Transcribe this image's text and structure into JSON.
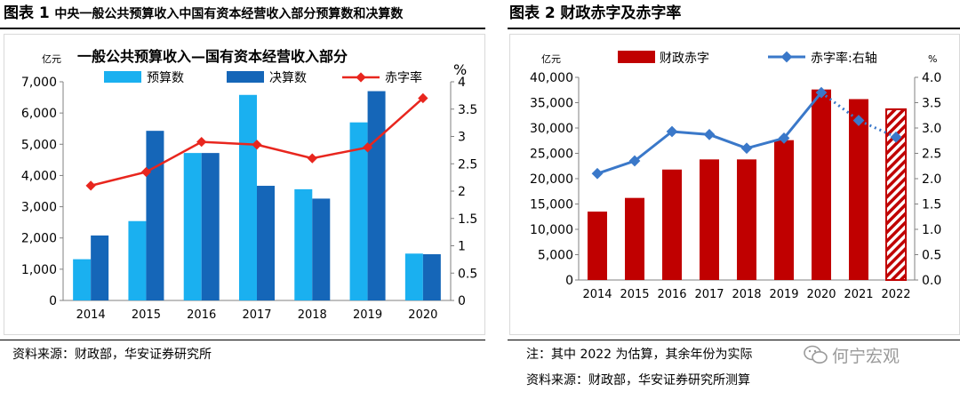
{
  "header_left": {
    "label": "图表 1",
    "title": "中央一般公共预算收入中国有资本经营收入部分预算数和决算数"
  },
  "header_right": {
    "label": "图表 2",
    "title": "财政赤字及赤字率"
  },
  "chart_data": [
    {
      "type": "bar",
      "title": "一般公共预算收入—国有资本经营收入部分",
      "ylabel_left": "亿元",
      "ylabel_right": "%",
      "categories": [
        "2014",
        "2015",
        "2016",
        "2017",
        "2018",
        "2019",
        "2020"
      ],
      "series": [
        {
          "name": "预算数",
          "kind": "bar",
          "axis": "left",
          "color": "#1ab0f0",
          "values": [
            1320,
            2540,
            4720,
            6580,
            3560,
            5700,
            1500
          ]
        },
        {
          "name": "决算数",
          "kind": "bar",
          "axis": "left",
          "color": "#1566b8",
          "values": [
            2080,
            5430,
            4720,
            3670,
            3260,
            6700,
            1480
          ]
        },
        {
          "name": "赤字率",
          "kind": "line",
          "axis": "right",
          "color": "#e8261e",
          "values": [
            2.1,
            2.35,
            2.9,
            2.85,
            2.6,
            2.8,
            3.7
          ]
        }
      ],
      "ylim": [
        0,
        7000
      ],
      "yticks": [
        "0",
        "1,000",
        "2,000",
        "3,000",
        "4,000",
        "5,000",
        "6,000",
        "7,000"
      ],
      "y2lim": [
        0,
        4
      ],
      "y2ticks": [
        "0",
        "0.5",
        "1",
        "1.5",
        "2",
        "2.5",
        "3",
        "3.5",
        "4"
      ]
    },
    {
      "type": "bar",
      "title": "",
      "ylabel_left": "亿元",
      "ylabel_right": "%",
      "categories": [
        "2014",
        "2015",
        "2016",
        "2017",
        "2018",
        "2019",
        "2020",
        "2021",
        "2022"
      ],
      "series": [
        {
          "name": "财政赤字",
          "kind": "bar",
          "axis": "left",
          "color": "#c00000",
          "values": [
            13500,
            16200,
            21800,
            23800,
            23800,
            27600,
            37600,
            35700,
            33700
          ],
          "hatched_last": true
        },
        {
          "name": "赤字率:右轴",
          "kind": "line",
          "axis": "right",
          "color": "#3a78c9",
          "values": [
            2.1,
            2.35,
            2.93,
            2.87,
            2.6,
            2.8,
            3.7,
            3.15,
            2.82
          ],
          "dotted_from_index": 7
        }
      ],
      "ylim": [
        0,
        40000
      ],
      "yticks": [
        "0",
        "5,000",
        "10,000",
        "15,000",
        "20,000",
        "25,000",
        "30,000",
        "35,000",
        "40,000"
      ],
      "y2lim": [
        0,
        4
      ],
      "y2ticks": [
        "0.0",
        "0.5",
        "1.0",
        "1.5",
        "2.0",
        "2.5",
        "3.0",
        "3.5",
        "4.0"
      ]
    }
  ],
  "footer": {
    "left_source": "资料来源：财政部，华安证券研究所",
    "right_note": "注：其中 2022 为估算，其余年份为实际",
    "right_source": "资料来源：财政部，华安证券研究所测算",
    "watermark": "何宁宏观"
  }
}
